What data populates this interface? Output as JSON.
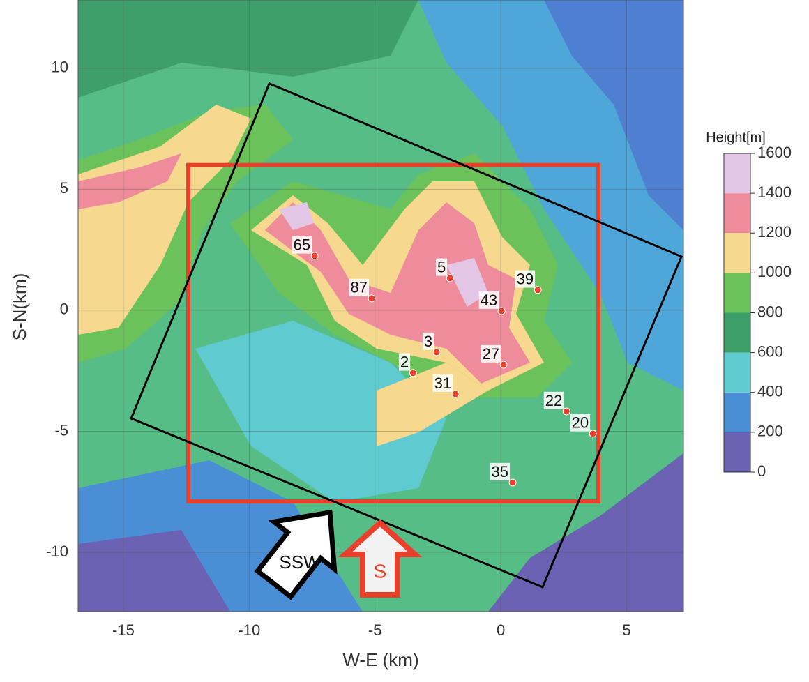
{
  "map": {
    "x_axis": {
      "label": "W-E (km)",
      "lim": [
        -16.8,
        7.26
      ],
      "ticks": [
        -15,
        -10,
        -5,
        0,
        5
      ]
    },
    "y_axis": {
      "label": "S-N(km)",
      "lim": [
        -12.45,
        12.82
      ],
      "ticks": [
        -10,
        -5,
        0,
        5,
        10
      ]
    },
    "points": [
      {
        "label": "65",
        "x": -7.4,
        "y": 2.25
      },
      {
        "label": "87",
        "x": -5.13,
        "y": 0.49
      },
      {
        "label": "5",
        "x": -2.02,
        "y": 1.33
      },
      {
        "label": "39",
        "x": 1.47,
        "y": 0.84
      },
      {
        "label": "43",
        "x": 0.03,
        "y": -0.03
      },
      {
        "label": "3",
        "x": -2.55,
        "y": -1.73
      },
      {
        "label": "27",
        "x": 0.11,
        "y": -2.25
      },
      {
        "label": "2",
        "x": -3.49,
        "y": -2.59
      },
      {
        "label": "31",
        "x": -1.8,
        "y": -3.46
      },
      {
        "label": "22",
        "x": 2.61,
        "y": -4.18
      },
      {
        "label": "20",
        "x": 3.66,
        "y": -5.1
      },
      {
        "label": "35",
        "x": 0.47,
        "y": -7.12
      }
    ],
    "study_area": {
      "x": [
        -12.42,
        3.88
      ],
      "y": [
        -7.9,
        6.0
      ],
      "color": "#e8402a"
    },
    "rotated_domain": [
      [
        -9.2,
        9.37
      ],
      [
        7.18,
        2.22
      ],
      [
        1.66,
        -11.44
      ],
      [
        -14.69,
        -4.47
      ]
    ],
    "arrows": [
      {
        "label": "SSW"
      },
      {
        "label": "S"
      }
    ]
  },
  "colorbar": {
    "title": "Height[m]",
    "levels": [
      0,
      200,
      400,
      600,
      800,
      1000,
      1200,
      1400,
      1600
    ],
    "colors": [
      "#6b62b4",
      "#4a8ed6",
      "#5fcad0",
      "#3f9f6a",
      "#6cc25a",
      "#f6d98e",
      "#ee8c9c",
      "#e3c6e6"
    ]
  }
}
